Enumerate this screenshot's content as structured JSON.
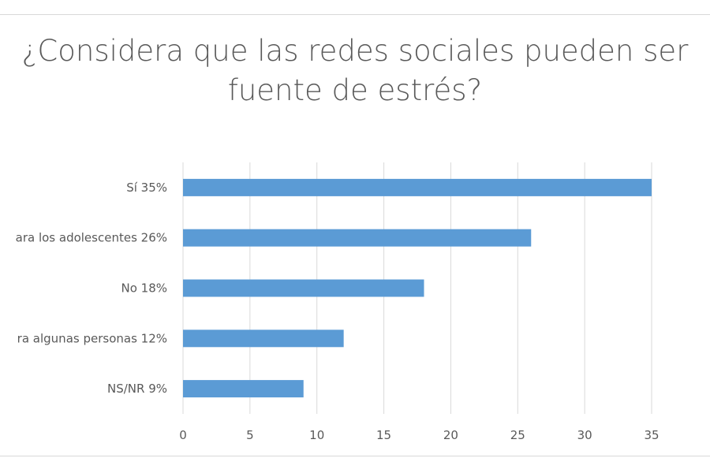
{
  "chart_data": {
    "type": "bar",
    "orientation": "horizontal",
    "title": "¿Considera que las redes sociales pueden ser fuente de estrés?",
    "title_lines": [
      "¿Considera que las redes sociales pueden ser",
      "fuente de estrés?"
    ],
    "categories": [
      "Sí  35%",
      "ara los adolescentes  26%",
      "No  18%",
      "ra algunas personas  12%",
      "NS/NR  9%"
    ],
    "values": [
      35,
      26,
      18,
      12,
      9
    ],
    "xlim": [
      0,
      35
    ],
    "xticks": [
      "0",
      "5",
      "10",
      "15",
      "20",
      "25",
      "30",
      "35"
    ],
    "xlabel": "",
    "ylabel": "",
    "grid": "vertical",
    "legend": "none",
    "bar_color": "#5b9bd5"
  }
}
